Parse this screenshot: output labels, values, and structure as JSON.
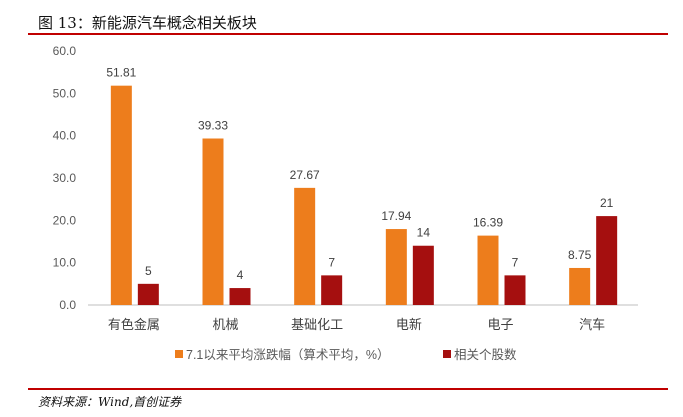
{
  "title": "图 13：新能源汽车概念相关板块",
  "source": "资料来源：Wind,首创证券",
  "chart_data": {
    "type": "bar",
    "categories": [
      "有色金属",
      "机械",
      "基础化工",
      "电新",
      "电子",
      "汽车"
    ],
    "series": [
      {
        "name": "7.1以来平均涨跌幅（算术平均，%）",
        "color": "#ED7D1C",
        "values": [
          51.81,
          39.33,
          27.67,
          17.94,
          16.39,
          8.75
        ],
        "labels": [
          "51.81",
          "39.33",
          "27.67",
          "17.94",
          "16.39",
          "8.75"
        ]
      },
      {
        "name": "相关个股数",
        "color": "#A50F0F",
        "values": [
          5,
          4,
          7,
          14,
          7,
          21
        ],
        "labels": [
          "5",
          "4",
          "7",
          "14",
          "7",
          "21"
        ]
      }
    ],
    "ylim": [
      0,
      60
    ],
    "yticks": [
      "0.0",
      "10.0",
      "20.0",
      "30.0",
      "40.0",
      "50.0",
      "60.0"
    ],
    "legend": "bottom",
    "grid": false
  }
}
